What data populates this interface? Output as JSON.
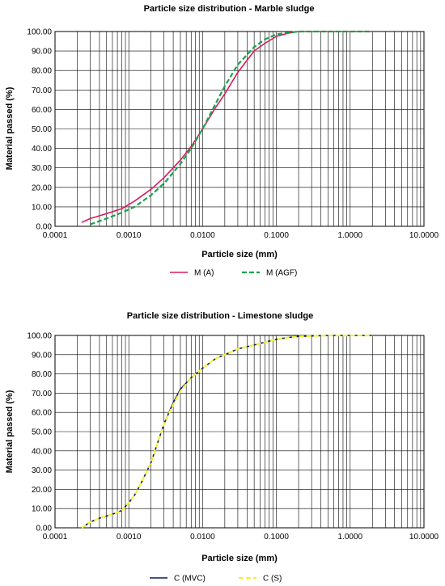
{
  "chart_data": [
    {
      "type": "line",
      "title": "Particle size distribution - Marble sludge",
      "xlabel": "Particle size (mm)",
      "ylabel": "Material passed (%)",
      "xscale": "log",
      "xlim": [
        0.0001,
        10
      ],
      "ylim": [
        0,
        100
      ],
      "x_ticks": [
        "0.0001",
        "0.0010",
        "0.0100",
        "0.1000",
        "1.0000",
        "10.0000"
      ],
      "y_ticks": [
        "0.00",
        "10.00",
        "20.00",
        "30.00",
        "40.00",
        "50.00",
        "60.00",
        "70.00",
        "80.00",
        "90.00",
        "100.00"
      ],
      "grid": true,
      "legend_position": "bottom",
      "series": [
        {
          "name": "M (A)",
          "color": "#d81b60",
          "style": "solid",
          "x": [
            0.00023,
            0.0003,
            0.0005,
            0.0008,
            0.0012,
            0.002,
            0.003,
            0.005,
            0.007,
            0.01,
            0.015,
            0.02,
            0.03,
            0.05,
            0.07,
            0.1,
            0.15,
            0.2,
            0.5,
            1,
            2
          ],
          "y": [
            2,
            4,
            6.5,
            9,
            13,
            19,
            25,
            34,
            41,
            50,
            61,
            68,
            79,
            90,
            94,
            97.5,
            99.3,
            100,
            100,
            100,
            100
          ]
        },
        {
          "name": "M (AGF)",
          "color": "#1aa34a",
          "style": "dashed",
          "x": [
            0.0003,
            0.0005,
            0.0008,
            0.0012,
            0.002,
            0.003,
            0.005,
            0.007,
            0.01,
            0.015,
            0.02,
            0.03,
            0.05,
            0.07,
            0.1,
            0.15,
            0.2,
            0.5,
            1,
            2
          ],
          "y": [
            1,
            4,
            7,
            10,
            16,
            22,
            32,
            40,
            50,
            63,
            72,
            83,
            92,
            96,
            98.5,
            99.5,
            100,
            100,
            100,
            100
          ]
        }
      ]
    },
    {
      "type": "line",
      "title": "Particle size distribution - Limestone sludge",
      "xlabel": "Particle size (mm)",
      "ylabel": "Material passed (%)",
      "xscale": "log",
      "xlim": [
        0.0001,
        10
      ],
      "ylim": [
        0,
        100
      ],
      "x_ticks": [
        "0.0001",
        "0.0010",
        "0.0100",
        "0.1000",
        "1.0000",
        "10.0000"
      ],
      "y_ticks": [
        "0.00",
        "10.00",
        "20.00",
        "30.00",
        "40.00",
        "50.00",
        "60.00",
        "70.00",
        "80.00",
        "90.00",
        "100.00"
      ],
      "grid": true,
      "legend_position": "bottom",
      "series": [
        {
          "name": "C (MVC)",
          "color": "#0d1a5c",
          "style": "solid",
          "x": [
            0.00023,
            0.0003,
            0.0004,
            0.0006,
            0.0008,
            0.001,
            0.0012,
            0.0015,
            0.002,
            0.0025,
            0.003,
            0.004,
            0.005,
            0.007,
            0.01,
            0.015,
            0.02,
            0.03,
            0.05,
            0.07,
            0.1,
            0.15,
            0.2,
            0.5,
            1,
            2
          ],
          "y": [
            0,
            3,
            5,
            7,
            9,
            13,
            17,
            24,
            34,
            45,
            54,
            65,
            72,
            78,
            83,
            88,
            90,
            93,
            95,
            96.5,
            98,
            99,
            99.5,
            100,
            100,
            100
          ]
        },
        {
          "name": "C (S)",
          "color": "#f2f23a",
          "style": "dashed",
          "x": [
            0.00023,
            0.0003,
            0.0004,
            0.0006,
            0.0008,
            0.001,
            0.0012,
            0.0015,
            0.002,
            0.0025,
            0.003,
            0.004,
            0.005,
            0.007,
            0.01,
            0.015,
            0.02,
            0.03,
            0.05,
            0.07,
            0.1,
            0.15,
            0.2,
            0.5,
            1,
            2
          ],
          "y": [
            0,
            3,
            5,
            7,
            9,
            13,
            17,
            24,
            34,
            45,
            54,
            64,
            71,
            78,
            83,
            88,
            90,
            93,
            95,
            96.5,
            98,
            99,
            99.5,
            100,
            100,
            100
          ]
        }
      ]
    }
  ]
}
